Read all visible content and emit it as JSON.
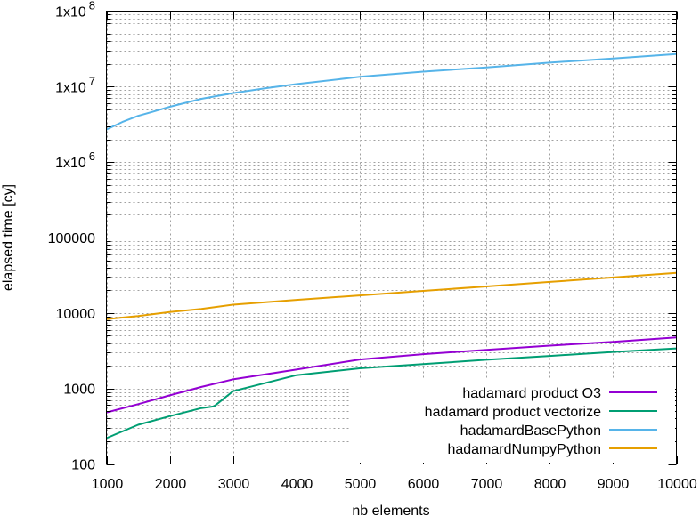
{
  "chart_data": {
    "type": "line",
    "xlabel": "nb elements",
    "ylabel": "elapsed time [cy]",
    "xlim": [
      1000,
      10000
    ],
    "ylim": [
      100,
      100000000
    ],
    "y_scale": "log",
    "grid": true,
    "legend_position": "bottom-right",
    "x_ticks": [
      1000,
      2000,
      3000,
      4000,
      5000,
      6000,
      7000,
      8000,
      9000,
      10000
    ],
    "x_tick_labels": [
      "1000",
      "2000",
      "3000",
      "4000",
      "5000",
      "6000",
      "7000",
      "8000",
      "9000",
      "10000"
    ],
    "y_ticks": [
      {
        "value": 100,
        "label": "100"
      },
      {
        "value": 1000,
        "label": "1000"
      },
      {
        "value": 10000,
        "label": "10000"
      },
      {
        "value": 100000,
        "label": "100000"
      },
      {
        "value": 1000000,
        "base": "1x10",
        "exp": "6"
      },
      {
        "value": 10000000,
        "base": "1x10",
        "exp": "7"
      },
      {
        "value": 100000000,
        "base": "1x10",
        "exp": "8"
      }
    ],
    "series": [
      {
        "name": "hadamard product O3",
        "color": "#9400d3",
        "x": [
          1000,
          1500,
          2000,
          2500,
          3000,
          4000,
          5000,
          6000,
          7000,
          8000,
          9000,
          10000
        ],
        "y": [
          480,
          620,
          810,
          1050,
          1320,
          1780,
          2420,
          2850,
          3250,
          3700,
          4150,
          4750
        ]
      },
      {
        "name": "hadamard product vectorize",
        "color": "#009e73",
        "x": [
          1000,
          1500,
          2000,
          2500,
          2700,
          3000,
          4000,
          5000,
          6000,
          7000,
          8000,
          9000,
          10000
        ],
        "y": [
          220,
          330,
          430,
          550,
          580,
          920,
          1500,
          1850,
          2100,
          2400,
          2700,
          3050,
          3400
        ]
      },
      {
        "name": "hadamardBasePython",
        "color": "#56b4e9",
        "x": [
          1000,
          1250,
          1500,
          1750,
          2000,
          2500,
          3000,
          3500,
          4000,
          5000,
          6000,
          7000,
          8000,
          9000,
          10000
        ],
        "y": [
          2700000,
          3400000,
          4100000,
          4700000,
          5400000,
          6900000,
          8200000,
          9500000,
          10800000,
          13500000,
          15800000,
          18000000,
          20800000,
          23600000,
          27000000
        ]
      },
      {
        "name": "hadamardNumpyPython",
        "color": "#e69f00",
        "x": [
          1000,
          1500,
          2000,
          2500,
          3000,
          4000,
          5000,
          6000,
          7000,
          8000,
          9000,
          10000
        ],
        "y": [
          8300,
          9100,
          10300,
          11300,
          12900,
          14900,
          17100,
          19600,
          22500,
          25800,
          29600,
          34000
        ]
      }
    ]
  }
}
